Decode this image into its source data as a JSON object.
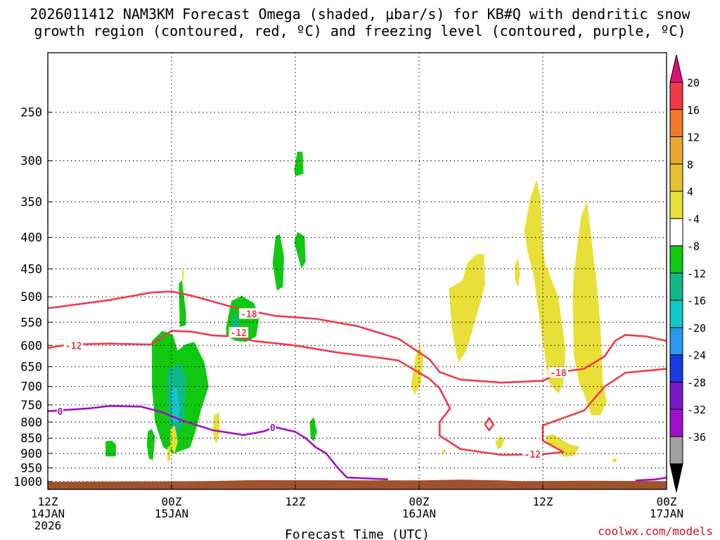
{
  "title_line1": "2026011412 NAM3KM Forecast Omega (shaded, μbar/s) for KB#Q with dendritic snow",
  "title_line2": "growth region (contoured, red, ºC) and freezing level (contoured, purple, ºC)",
  "credit": "coolwx.com/models",
  "chart_data": {
    "type": "contour",
    "xlabel": "Forecast Time (UTC)",
    "x_ticks": [
      {
        "t": 0,
        "l1": "12Z",
        "l2": "14JAN",
        "l3": "2026"
      },
      {
        "t": 12,
        "l1": "00Z",
        "l2": "15JAN",
        "l3": ""
      },
      {
        "t": 24,
        "l1": "12Z",
        "l2": "",
        "l3": ""
      },
      {
        "t": 36,
        "l1": "00Z",
        "l2": "16JAN",
        "l3": ""
      },
      {
        "t": 48,
        "l1": "12Z",
        "l2": "",
        "l3": ""
      },
      {
        "t": 60,
        "l1": "00Z",
        "l2": "17JAN",
        "l3": ""
      }
    ],
    "x_range_hours": [
      0,
      60
    ],
    "y_ticks_hPa": [
      250,
      300,
      350,
      400,
      450,
      500,
      550,
      600,
      650,
      700,
      750,
      800,
      850,
      900,
      950,
      1000
    ],
    "y_range_hPa": [
      200,
      1030
    ],
    "y_scale": "log-pressure",
    "grid": "dotted",
    "colorbar": {
      "labels": [
        "20",
        "16",
        "12",
        "8",
        "4",
        "-4",
        "-8",
        "-12",
        "-16",
        "-20",
        "-24",
        "-28",
        "-32",
        "-36"
      ],
      "colors": [
        "#f03a48",
        "#f07828",
        "#e8a830",
        "#e8c030",
        "#e8e038",
        "#ffffff",
        "#10c810",
        "#10b888",
        "#10c8c8",
        "#2898f0",
        "#1838e0",
        "#7818c8",
        "#a010c8",
        "#a0a0a0"
      ],
      "top_triangle_color": "#e0107a",
      "bottom_triangle_color": "#000000"
    },
    "terrain_color": "#a0522d",
    "contours": {
      "dgz_red": {
        "color": "#f03a48",
        "labels": [
          {
            "text": "-12",
            "t": 2.5,
            "p": 600
          },
          {
            "text": "-18",
            "t": 19.5,
            "p": 533
          },
          {
            "text": "-12",
            "t": 18.5,
            "p": 572
          },
          {
            "text": "-18",
            "t": 49.5,
            "p": 665
          },
          {
            "text": "-12",
            "t": 47.0,
            "p": 903
          }
        ],
        "upper_line": [
          [
            0,
            522
          ],
          [
            6,
            506
          ],
          [
            10,
            492
          ],
          [
            12,
            490
          ],
          [
            14,
            498
          ],
          [
            18,
            520
          ],
          [
            22,
            537
          ],
          [
            26,
            543
          ],
          [
            30,
            558
          ],
          [
            34,
            585
          ],
          [
            37,
            632
          ],
          [
            38,
            663
          ],
          [
            40,
            682
          ],
          [
            44,
            690
          ],
          [
            48,
            685
          ],
          [
            50,
            662
          ],
          [
            52,
            655
          ],
          [
            54,
            625
          ],
          [
            55,
            590
          ],
          [
            56,
            577
          ],
          [
            58,
            580
          ],
          [
            60,
            590
          ]
        ],
        "lower_line": [
          [
            0,
            606
          ],
          [
            2,
            598
          ],
          [
            6,
            596
          ],
          [
            10,
            598
          ],
          [
            12,
            568
          ],
          [
            14,
            570
          ],
          [
            16,
            578
          ],
          [
            18,
            580
          ],
          [
            20,
            590
          ],
          [
            24,
            600
          ],
          [
            28,
            616
          ],
          [
            32,
            628
          ],
          [
            34,
            635
          ],
          [
            37,
            680
          ],
          [
            38,
            705
          ],
          [
            39,
            760
          ],
          [
            38,
            800
          ],
          [
            38,
            842
          ],
          [
            40,
            885
          ],
          [
            44,
            905
          ],
          [
            48,
            903
          ],
          [
            50,
            895
          ],
          [
            48,
            858
          ],
          [
            48,
            810
          ],
          [
            52,
            766
          ],
          [
            54,
            700
          ],
          [
            56,
            665
          ],
          [
            60,
            655
          ]
        ],
        "loop": [
          [
            42.4,
            808
          ],
          [
            42.8,
            788
          ],
          [
            43.2,
            808
          ],
          [
            42.8,
            825
          ],
          [
            42.4,
            808
          ]
        ]
      },
      "freezing_purple": {
        "color": "#a010c8",
        "labels": [
          {
            "text": "0",
            "t": 1.2,
            "p": 768
          },
          {
            "text": "0",
            "t": 21.8,
            "p": 817
          }
        ],
        "main_line": [
          [
            0,
            768
          ],
          [
            4,
            760
          ],
          [
            6,
            753
          ],
          [
            9,
            755
          ],
          [
            11,
            770
          ],
          [
            13,
            795
          ],
          [
            16,
            825
          ],
          [
            19,
            840
          ],
          [
            21,
            828
          ],
          [
            22,
            815
          ],
          [
            24,
            830
          ],
          [
            25,
            850
          ],
          [
            26,
            880
          ],
          [
            27,
            900
          ],
          [
            28,
            945
          ],
          [
            29,
            985
          ],
          [
            33,
            992
          ]
        ],
        "right_line": [
          [
            57,
            996
          ],
          [
            59,
            992
          ],
          [
            60,
            985
          ]
        ]
      }
    },
    "omega_shading": [
      {
        "color": "#10c810",
        "pts": [
          [
            5.6,
            860
          ],
          [
            6.2,
            858
          ],
          [
            6.6,
            870
          ],
          [
            6.6,
            910
          ],
          [
            5.6,
            910
          ]
        ]
      },
      {
        "color": "#10c810",
        "pts": [
          [
            9.7,
            828
          ],
          [
            10.1,
            822
          ],
          [
            10.4,
            845
          ],
          [
            10.2,
            922
          ],
          [
            9.8,
            918
          ],
          [
            9.6,
            870
          ]
        ]
      },
      {
        "color": "#10c810",
        "pts": [
          [
            10.1,
            590
          ],
          [
            11.1,
            568
          ],
          [
            12.1,
            576
          ],
          [
            12.6,
            612
          ],
          [
            13.3,
            598
          ],
          [
            14.2,
            592
          ],
          [
            15.2,
            640
          ],
          [
            15.6,
            700
          ],
          [
            14.9,
            760
          ],
          [
            14.4,
            820
          ],
          [
            13.8,
            880
          ],
          [
            12.2,
            900
          ],
          [
            11.2,
            880
          ],
          [
            10.4,
            800
          ],
          [
            10.1,
            700
          ]
        ]
      },
      {
        "color": "#10c810",
        "pts": [
          [
            12.7,
            476
          ],
          [
            13.0,
            470
          ],
          [
            13.4,
            530
          ],
          [
            13.4,
            556
          ],
          [
            12.8,
            560
          ]
        ]
      },
      {
        "color": "#10c810",
        "pts": [
          [
            17.3,
            560
          ],
          [
            17.8,
            508
          ],
          [
            18.8,
            498
          ],
          [
            20.0,
            512
          ],
          [
            20.5,
            540
          ],
          [
            20.2,
            580
          ],
          [
            19.2,
            592
          ],
          [
            18.2,
            590
          ],
          [
            17.3,
            578
          ]
        ]
      },
      {
        "color": "#10c810",
        "pts": [
          [
            21.8,
            440
          ],
          [
            22.1,
            398
          ],
          [
            22.5,
            395
          ],
          [
            22.9,
            430
          ],
          [
            22.8,
            482
          ],
          [
            22.2,
            488
          ]
        ]
      },
      {
        "color": "#10c810",
        "pts": [
          [
            23.9,
            310
          ],
          [
            24.2,
            290
          ],
          [
            24.7,
            290
          ],
          [
            24.8,
            315
          ],
          [
            24.0,
            318
          ]
        ]
      },
      {
        "color": "#10c810",
        "pts": [
          [
            23.9,
            408
          ],
          [
            24.2,
            392
          ],
          [
            24.9,
            398
          ],
          [
            25.0,
            438
          ],
          [
            24.6,
            450
          ]
        ]
      },
      {
        "color": "#10c810",
        "pts": [
          [
            25.4,
            800
          ],
          [
            25.8,
            785
          ],
          [
            26.1,
            830
          ],
          [
            25.8,
            860
          ],
          [
            25.5,
            850
          ]
        ]
      },
      {
        "color": "#10b888",
        "pts": [
          [
            11.6,
            660
          ],
          [
            12.8,
            640
          ],
          [
            13.4,
            680
          ],
          [
            13.2,
            790
          ],
          [
            12.5,
            845
          ],
          [
            12.0,
            830
          ],
          [
            11.6,
            760
          ]
        ]
      },
      {
        "color": "#10b888",
        "pts": [
          [
            17.9,
            540
          ],
          [
            18.3,
            530
          ],
          [
            18.6,
            556
          ],
          [
            18.3,
            588
          ],
          [
            17.9,
            575
          ]
        ]
      },
      {
        "color": "#10c8c8",
        "pts": [
          [
            12.0,
            710
          ],
          [
            12.5,
            700
          ],
          [
            12.8,
            760
          ],
          [
            12.5,
            810
          ],
          [
            12.1,
            790
          ]
        ]
      },
      {
        "color": "#e8e038",
        "pts": [
          [
            13.0,
            450
          ],
          [
            13.2,
            455
          ],
          [
            13.1,
            480
          ],
          [
            13.0,
            470
          ]
        ]
      },
      {
        "color": "#e8e038",
        "pts": [
          [
            11.9,
            820
          ],
          [
            12.3,
            810
          ],
          [
            12.6,
            860
          ],
          [
            12.3,
            900
          ],
          [
            11.9,
            880
          ]
        ]
      },
      {
        "color": "#e8e038",
        "pts": [
          [
            16.1,
            780
          ],
          [
            16.6,
            772
          ],
          [
            16.7,
            830
          ],
          [
            16.3,
            870
          ],
          [
            16.0,
            830
          ]
        ]
      },
      {
        "color": "#e8e038",
        "pts": [
          [
            35.2,
            700
          ],
          [
            35.7,
            620
          ],
          [
            36.1,
            600
          ],
          [
            36.4,
            630
          ],
          [
            36.2,
            690
          ],
          [
            35.6,
            722
          ]
        ]
      },
      {
        "color": "#e8e038",
        "pts": [
          [
            38.9,
            485
          ],
          [
            40.2,
            470
          ],
          [
            40.7,
            440
          ],
          [
            41.6,
            426
          ],
          [
            42.3,
            426
          ],
          [
            42.4,
            478
          ],
          [
            41.8,
            520
          ],
          [
            40.6,
            612
          ],
          [
            39.8,
            640
          ],
          [
            39.2,
            565
          ]
        ]
      },
      {
        "color": "#e8e038",
        "pts": [
          [
            43.4,
            862
          ],
          [
            43.8,
            845
          ],
          [
            44.3,
            850
          ],
          [
            44.0,
            880
          ],
          [
            43.6,
            885
          ]
        ]
      },
      {
        "color": "#e8e038",
        "pts": [
          [
            45.3,
            444
          ],
          [
            45.6,
            432
          ],
          [
            45.8,
            460
          ],
          [
            45.6,
            482
          ],
          [
            45.3,
            468
          ]
        ]
      },
      {
        "color": "#e8e038",
        "pts": [
          [
            46.2,
            390
          ],
          [
            46.8,
            345
          ],
          [
            47.4,
            322
          ],
          [
            47.8,
            346
          ],
          [
            48.0,
            410
          ],
          [
            48.2,
            440
          ],
          [
            49.5,
            500
          ],
          [
            50.2,
            610
          ],
          [
            50.0,
            690
          ],
          [
            49.5,
            720
          ],
          [
            48.6,
            690
          ],
          [
            48.3,
            640
          ],
          [
            47.8,
            560
          ],
          [
            47.1,
            460
          ],
          [
            46.5,
            420
          ]
        ]
      },
      {
        "color": "#e8e038",
        "pts": [
          [
            51.3,
            420
          ],
          [
            51.7,
            370
          ],
          [
            52.3,
            350
          ],
          [
            52.7,
            400
          ],
          [
            53.2,
            470
          ],
          [
            53.6,
            560
          ],
          [
            53.8,
            690
          ],
          [
            54.2,
            740
          ],
          [
            53.6,
            780
          ],
          [
            52.7,
            780
          ],
          [
            52.0,
            720
          ],
          [
            51.5,
            690
          ],
          [
            51.0,
            620
          ],
          [
            50.9,
            500
          ],
          [
            51.0,
            460
          ]
        ]
      },
      {
        "color": "#e8e038",
        "pts": [
          [
            48.2,
            842
          ],
          [
            49.0,
            838
          ],
          [
            50.6,
            870
          ],
          [
            51.6,
            878
          ],
          [
            51.0,
            908
          ],
          [
            50.0,
            912
          ],
          [
            49.5,
            882
          ],
          [
            48.5,
            870
          ]
        ]
      },
      {
        "color": "#e8e038",
        "pts": [
          [
            54.7,
            920
          ],
          [
            55.1,
            915
          ],
          [
            55.2,
            928
          ],
          [
            54.8,
            930
          ]
        ]
      },
      {
        "color": "#e8e038",
        "pts": [
          [
            38.2,
            890
          ],
          [
            38.5,
            885
          ],
          [
            38.6,
            898
          ],
          [
            38.3,
            900
          ]
        ]
      },
      {
        "color": "#e8e038",
        "pts": [
          [
            11.6,
            880
          ],
          [
            11.9,
            875
          ],
          [
            11.9,
            920
          ],
          [
            11.6,
            930
          ]
        ]
      }
    ]
  }
}
